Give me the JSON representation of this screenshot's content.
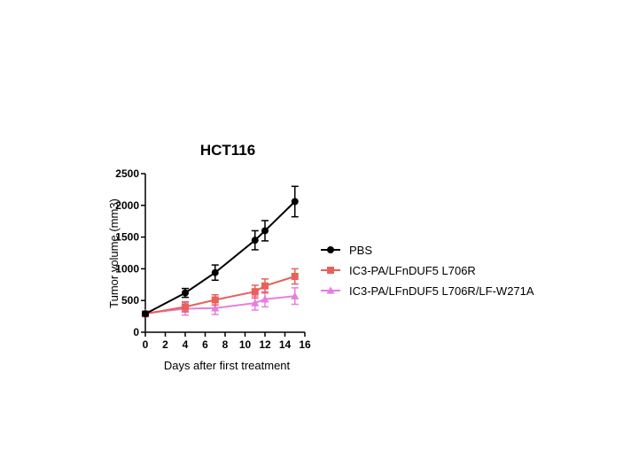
{
  "chart_data": {
    "type": "line",
    "title": "HCT116",
    "xlabel": "Days after first treatment",
    "ylabel": "Tumor volume (mm3)",
    "xlim": [
      0,
      16
    ],
    "ylim": [
      0,
      2500
    ],
    "xticks": [
      0,
      2,
      4,
      6,
      8,
      10,
      12,
      14,
      16
    ],
    "yticks": [
      0,
      500,
      1000,
      1500,
      2000,
      2500
    ],
    "grid": false,
    "legend_position": "right",
    "series": [
      {
        "name": "PBS",
        "color": "#000000",
        "marker": "circle",
        "x": [
          0,
          4,
          7,
          11,
          12,
          15
        ],
        "y": [
          290,
          620,
          940,
          1450,
          1600,
          2060
        ],
        "error": [
          30,
          70,
          120,
          150,
          160,
          240
        ]
      },
      {
        "name": "IC3-PA/LFnDUF5 L706R",
        "color": "#e8605a",
        "marker": "square",
        "x": [
          0,
          4,
          7,
          11,
          12,
          15
        ],
        "y": [
          290,
          400,
          510,
          640,
          730,
          880
        ],
        "error": [
          30,
          80,
          80,
          100,
          110,
          120
        ]
      },
      {
        "name": "IC3-PA/LFnDUF5 L706R/LF-W271A",
        "color": "#e57ee0",
        "marker": "triangle",
        "x": [
          0,
          4,
          7,
          11,
          12,
          15
        ],
        "y": [
          300,
          370,
          380,
          460,
          520,
          570
        ],
        "error": [
          30,
          100,
          100,
          110,
          120,
          130
        ]
      }
    ]
  }
}
